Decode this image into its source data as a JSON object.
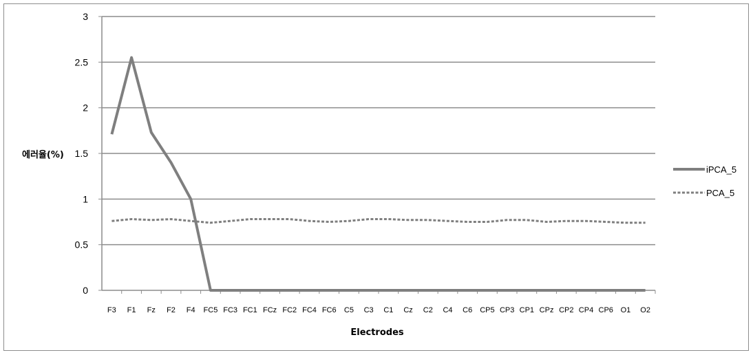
{
  "chart_data": {
    "type": "line",
    "title": "",
    "xlabel": "Electrodes",
    "ylabel": "에러율(%)",
    "ylim": [
      0,
      3
    ],
    "yticks": [
      "0",
      "0.5",
      "1",
      "1.5",
      "2",
      "2.5",
      "3"
    ],
    "grid": true,
    "legend_position": "right",
    "categories": [
      "F3",
      "F1",
      "Fz",
      "F2",
      "F4",
      "FC5",
      "FC3",
      "FC1",
      "FCz",
      "FC2",
      "FC4",
      "FC6",
      "C5",
      "C3",
      "C1",
      "Cz",
      "C2",
      "C4",
      "C6",
      "CP5",
      "CP3",
      "CP1",
      "CPz",
      "CP2",
      "CP4",
      "CP6",
      "O1",
      "O2"
    ],
    "series": [
      {
        "name": "iPCA_5",
        "style": "solid",
        "color": "#7f7f7f",
        "values": [
          1.71,
          2.55,
          1.73,
          1.4,
          1.0,
          0,
          0,
          0,
          0,
          0,
          0,
          0,
          0,
          0,
          0,
          0,
          0,
          0,
          0,
          0,
          0,
          0,
          0,
          0,
          0,
          0,
          0,
          0
        ]
      },
      {
        "name": "PCA_5",
        "style": "dashed",
        "color": "#7f7f7f",
        "values": [
          0.76,
          0.78,
          0.77,
          0.78,
          0.76,
          0.74,
          0.76,
          0.78,
          0.78,
          0.78,
          0.76,
          0.75,
          0.76,
          0.78,
          0.78,
          0.77,
          0.77,
          0.76,
          0.75,
          0.75,
          0.77,
          0.77,
          0.75,
          0.76,
          0.76,
          0.75,
          0.74,
          0.74
        ]
      }
    ]
  },
  "colors": {
    "gridline": "#8c8c8c",
    "series": "#7f7f7f",
    "frame": "#8c8c8c"
  }
}
